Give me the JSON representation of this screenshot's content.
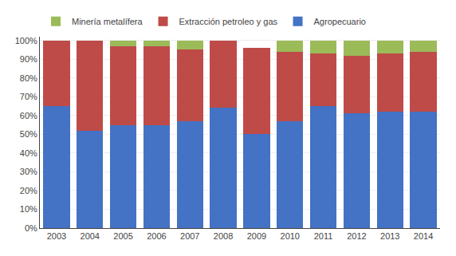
{
  "chart_data": {
    "type": "bar",
    "stacked": true,
    "categories": [
      "2003",
      "2004",
      "2005",
      "2006",
      "2007",
      "2008",
      "2009",
      "2010",
      "2011",
      "2012",
      "2013",
      "2014"
    ],
    "series": [
      {
        "name": "Agropecuario",
        "color": "#4472C4",
        "values": [
          65,
          52,
          55,
          55,
          57,
          64,
          50,
          57,
          65,
          61,
          62,
          62
        ]
      },
      {
        "name": "Extracción petroleo y gas",
        "color": "#BE4B48",
        "values": [
          35,
          48,
          42,
          42,
          38,
          36,
          46,
          37,
          28,
          31,
          31,
          32
        ]
      },
      {
        "name": "Minería metalífera",
        "color": "#9BBB59",
        "values": [
          0,
          0,
          3,
          3,
          5,
          0,
          0,
          6,
          7,
          8,
          7,
          6
        ]
      }
    ],
    "ylim": [
      0,
      102
    ],
    "yticks": [
      {
        "value": 0,
        "label": "0%"
      },
      {
        "value": 10,
        "label": "10%"
      },
      {
        "value": 20,
        "label": "20%"
      },
      {
        "value": 30,
        "label": "30%"
      },
      {
        "value": 40,
        "label": "40%"
      },
      {
        "value": 50,
        "label": "50%"
      },
      {
        "value": 60,
        "label": "60%"
      },
      {
        "value": 70,
        "label": "70%"
      },
      {
        "value": 80,
        "label": "80%"
      },
      {
        "value": 90,
        "label": "90%"
      },
      {
        "value": 100,
        "label": "100%"
      }
    ],
    "grid": true,
    "legend": "top"
  }
}
